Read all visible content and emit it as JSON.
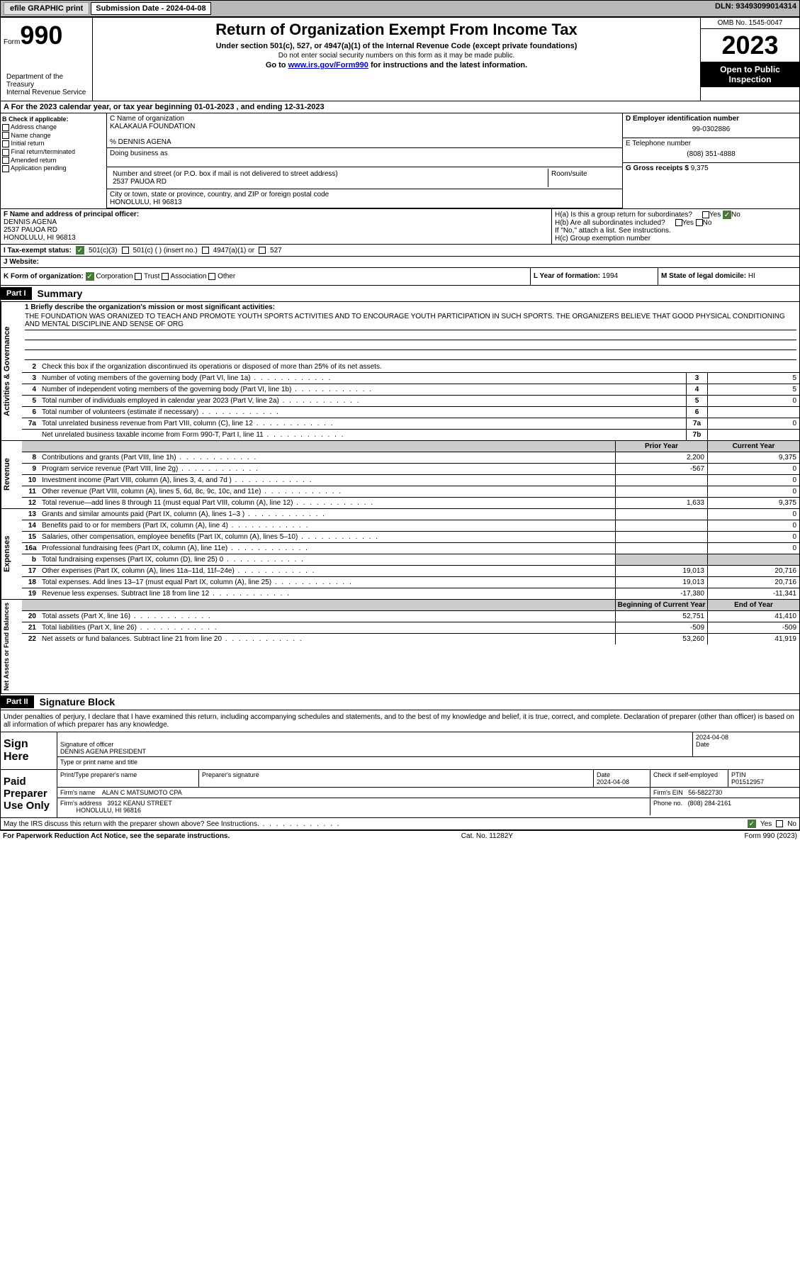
{
  "topbar": {
    "efile": "efile GRAPHIC print",
    "submission_label": "Submission Date - 2024-04-08",
    "dln": "DLN: 93493099014314"
  },
  "header": {
    "form_prefix": "Form",
    "form_num": "990",
    "dept": "Department of the Treasury\nInternal Revenue Service",
    "title": "Return of Organization Exempt From Income Tax",
    "subtitle": "Under section 501(c), 527, or 4947(a)(1) of the Internal Revenue Code (except private foundations)",
    "note1": "Do not enter social security numbers on this form as it may be made public.",
    "note2_pre": "Go to ",
    "note2_link": "www.irs.gov/Form990",
    "note2_post": " for instructions and the latest information.",
    "omb": "OMB No. 1545-0047",
    "year": "2023",
    "inspection": "Open to Public Inspection"
  },
  "period": "A For the 2023 calendar year, or tax year beginning 01-01-2023    , and ending 12-31-2023",
  "boxB": {
    "title": "B Check if applicable:",
    "items": [
      "Address change",
      "Name change",
      "Initial return",
      "Final return/terminated",
      "Amended return",
      "Application pending"
    ]
  },
  "boxC": {
    "name_label": "C Name of organization",
    "name": "KALAKAUA FOUNDATION",
    "co": "% DENNIS AGENA",
    "dba_label": "Doing business as",
    "addr_label": "Number and street (or P.O. box if mail is not delivered to street address)",
    "addr": "2537 PAUOA RD",
    "room_label": "Room/suite",
    "city_label": "City or town, state or province, country, and ZIP or foreign postal code",
    "city": "HONOLULU, HI  96813"
  },
  "boxD": {
    "label": "D Employer identification number",
    "value": "99-0302886"
  },
  "boxE": {
    "label": "E Telephone number",
    "value": "(808) 351-4888"
  },
  "boxG": {
    "label": "G Gross receipts $",
    "value": "9,375"
  },
  "boxF": {
    "label": "F  Name and address of principal officer:",
    "name": "DENNIS AGENA",
    "addr1": "2537 PAUOA RD",
    "addr2": "HONOLULU, HI  96813"
  },
  "boxH": {
    "a": "H(a)  Is this a group return for subordinates?",
    "b": "H(b)  Are all subordinates included?",
    "note": "If \"No,\" attach a list. See instructions.",
    "c": "H(c)  Group exemption number",
    "yes": "Yes",
    "no": "No"
  },
  "boxI": {
    "label": "I   Tax-exempt status:",
    "opt1": "501(c)(3)",
    "opt2": "501(c) (  ) (insert no.)",
    "opt3": "4947(a)(1) or",
    "opt4": "527"
  },
  "boxJ": {
    "label": "J   Website:"
  },
  "boxK": {
    "label": "K Form of organization:",
    "opts": [
      "Corporation",
      "Trust",
      "Association",
      "Other"
    ]
  },
  "boxL": {
    "label": "L Year of formation:",
    "value": "1994"
  },
  "boxM": {
    "label": "M State of legal domicile:",
    "value": "HI"
  },
  "part1": {
    "num": "Part I",
    "title": "Summary"
  },
  "summary": {
    "mission_label": "1   Briefly describe the organization's mission or most significant activities:",
    "mission": "THE FOUNDATION WAS ORANIZED TO TEACH AND PROMOTE YOUTH SPORTS ACTIVITIES AND TO ENCOURAGE YOUTH PARTICIPATION IN SUCH SPORTS. THE ORGANIZERS BELIEVE THAT GOOD PHYSICAL CONDITIONING AND MENTAL DISCIPLINE AND SENSE OF ORG",
    "line2": "Check this box     if the organization discontinued its operations or disposed of more than 25% of its net assets.",
    "gov_side": "Activities & Governance",
    "rev_side": "Revenue",
    "exp_side": "Expenses",
    "net_side": "Net Assets or Fund Balances",
    "lines_gov": [
      {
        "n": "3",
        "t": "Number of voting members of the governing body (Part VI, line 1a)",
        "box": "3",
        "v": "5"
      },
      {
        "n": "4",
        "t": "Number of independent voting members of the governing body (Part VI, line 1b)",
        "box": "4",
        "v": "5"
      },
      {
        "n": "5",
        "t": "Total number of individuals employed in calendar year 2023 (Part V, line 2a)",
        "box": "5",
        "v": "0"
      },
      {
        "n": "6",
        "t": "Total number of volunteers (estimate if necessary)",
        "box": "6",
        "v": ""
      },
      {
        "n": "7a",
        "t": "Total unrelated business revenue from Part VIII, column (C), line 12",
        "box": "7a",
        "v": "0"
      },
      {
        "n": "",
        "t": "Net unrelated business taxable income from Form 990-T, Part I, line 11",
        "box": "7b",
        "v": ""
      }
    ],
    "col_prior": "Prior Year",
    "col_current": "Current Year",
    "lines_rev": [
      {
        "n": "8",
        "t": "Contributions and grants (Part VIII, line 1h)",
        "p": "2,200",
        "c": "9,375"
      },
      {
        "n": "9",
        "t": "Program service revenue (Part VIII, line 2g)",
        "p": "-567",
        "c": "0"
      },
      {
        "n": "10",
        "t": "Investment income (Part VIII, column (A), lines 3, 4, and 7d )",
        "p": "",
        "c": "0"
      },
      {
        "n": "11",
        "t": "Other revenue (Part VIII, column (A), lines 5, 6d, 8c, 9c, 10c, and 11e)",
        "p": "",
        "c": "0"
      },
      {
        "n": "12",
        "t": "Total revenue—add lines 8 through 11 (must equal Part VIII, column (A), line 12)",
        "p": "1,633",
        "c": "9,375"
      }
    ],
    "lines_exp": [
      {
        "n": "13",
        "t": "Grants and similar amounts paid (Part IX, column (A), lines 1–3 )",
        "p": "",
        "c": "0"
      },
      {
        "n": "14",
        "t": "Benefits paid to or for members (Part IX, column (A), line 4)",
        "p": "",
        "c": "0"
      },
      {
        "n": "15",
        "t": "Salaries, other compensation, employee benefits (Part IX, column (A), lines 5–10)",
        "p": "",
        "c": "0"
      },
      {
        "n": "16a",
        "t": "Professional fundraising fees (Part IX, column (A), line 11e)",
        "p": "",
        "c": "0"
      },
      {
        "n": "b",
        "t": "Total fundraising expenses (Part IX, column (D), line 25) 0",
        "p": "grey",
        "c": "grey"
      },
      {
        "n": "17",
        "t": "Other expenses (Part IX, column (A), lines 11a–11d, 11f–24e)",
        "p": "19,013",
        "c": "20,716"
      },
      {
        "n": "18",
        "t": "Total expenses. Add lines 13–17 (must equal Part IX, column (A), line 25)",
        "p": "19,013",
        "c": "20,716"
      },
      {
        "n": "19",
        "t": "Revenue less expenses. Subtract line 18 from line 12",
        "p": "-17,380",
        "c": "-11,341"
      }
    ],
    "col_begin": "Beginning of Current Year",
    "col_end": "End of Year",
    "lines_net": [
      {
        "n": "20",
        "t": "Total assets (Part X, line 16)",
        "p": "52,751",
        "c": "41,410"
      },
      {
        "n": "21",
        "t": "Total liabilities (Part X, line 26)",
        "p": "-509",
        "c": "-509"
      },
      {
        "n": "22",
        "t": "Net assets or fund balances. Subtract line 21 from line 20",
        "p": "53,260",
        "c": "41,919"
      }
    ]
  },
  "part2": {
    "num": "Part II",
    "title": "Signature Block"
  },
  "sig": {
    "declaration": "Under penalties of perjury, I declare that I have examined this return, including accompanying schedules and statements, and to the best of my knowledge and belief, it is true, correct, and complete. Declaration of preparer (other than officer) is based on all information of which preparer has any knowledge.",
    "sign_here": "Sign Here",
    "officer_sig": "Signature of officer",
    "officer_name": "DENNIS AGENA  PRESIDENT",
    "officer_title_label": "Type or print name and title",
    "date1": "2024-04-08",
    "date_label": "Date",
    "paid_prep": "Paid Preparer Use Only",
    "prep_name_label": "Print/Type preparer's name",
    "prep_sig_label": "Preparer's signature",
    "prep_date": "2024-04-08",
    "check_self": "Check      if self-employed",
    "ptin_label": "PTIN",
    "ptin": "P01512957",
    "firm_name_label": "Firm's name",
    "firm_name": "ALAN C MATSUMOTO CPA",
    "firm_ein_label": "Firm's EIN",
    "firm_ein": "56-5822730",
    "firm_addr_label": "Firm's address",
    "firm_addr1": "3912 KEANU STREET",
    "firm_addr2": "HONOLULU, HI  96816",
    "phone_label": "Phone no.",
    "phone": "(808) 284-2161",
    "discuss": "May the IRS discuss this return with the preparer shown above? See Instructions.",
    "yes": "Yes",
    "no": "No"
  },
  "footer": {
    "left": "For Paperwork Reduction Act Notice, see the separate instructions.",
    "mid": "Cat. No. 11282Y",
    "right": "Form 990 (2023)"
  },
  "colors": {
    "topbar_bg": "#b8b8b8",
    "check_green": "#4a7a3a",
    "link": "#0000cc"
  }
}
